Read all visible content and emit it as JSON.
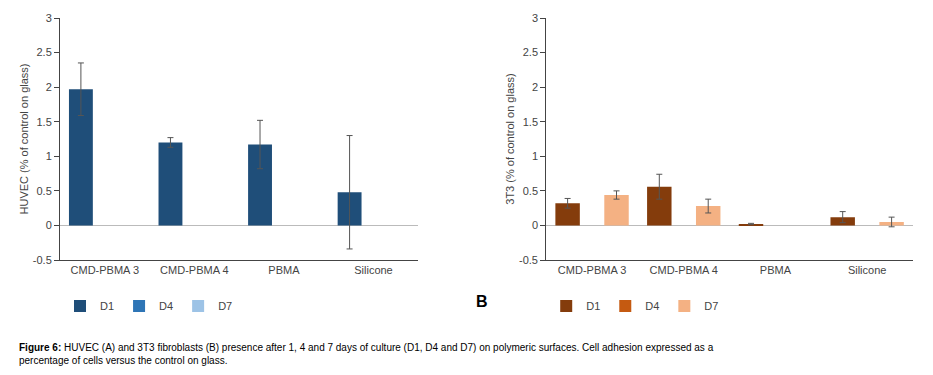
{
  "chart_data": [
    {
      "type": "bar",
      "ylabel": "HUVEC (% of control on glass)",
      "categories": [
        "CMD-PBMA 3",
        "CMD-PBMA 4",
        "PBMA",
        "Silicone"
      ],
      "series": [
        {
          "name": "D1",
          "color": "#1f4e79",
          "values": [
            1.97,
            1.2,
            1.17,
            0.48
          ],
          "errors": [
            0.38,
            0.07,
            0.35,
            0.82
          ]
        },
        {
          "name": "D4",
          "color": "#2e75b6",
          "values": [
            null,
            null,
            null,
            null
          ],
          "errors": [
            null,
            null,
            null,
            null
          ]
        },
        {
          "name": "D7",
          "color": "#9dc3e6",
          "values": [
            null,
            null,
            null,
            null
          ],
          "errors": [
            null,
            null,
            null,
            null
          ]
        }
      ],
      "ylim": [
        -0.5,
        3
      ],
      "yticks": [
        -0.5,
        0,
        0.5,
        1,
        1.5,
        2,
        2.5,
        3
      ],
      "grid": false,
      "caption_label": "Figure 6:",
      "caption": "HUVEC (A) and 3T3 fibroblasts (B) presence after 1, 4 and 7 days of culture (D1, D4 and D7) on polymeric surfaces. Cell adhesion expressed as a\npercentage of cells versus the control on glass."
    },
    {
      "type": "bar",
      "ylabel": "3T3 (% of control on glass)",
      "categories": [
        "CMD-PBMA 3",
        "CMD-PBMA 4",
        "PBMA",
        "Silicone"
      ],
      "series": [
        {
          "name": "D1",
          "color": "#843c0c",
          "values": [
            0.32,
            0.56,
            0.02,
            0.12
          ],
          "errors": [
            0.07,
            0.18,
            0.01,
            0.08
          ]
        },
        {
          "name": "D4",
          "color": "#c55a11",
          "values": [
            null,
            null,
            null,
            null
          ],
          "errors": [
            null,
            null,
            null,
            null
          ]
        },
        {
          "name": "D7",
          "color": "#f4b183",
          "values": [
            0.44,
            0.28,
            null,
            0.05
          ],
          "errors": [
            0.06,
            0.1,
            null,
            0.07
          ]
        }
      ],
      "ylim": [
        -0.5,
        3
      ],
      "yticks": [
        -0.5,
        0,
        0.5,
        1,
        1.5,
        2,
        2.5,
        3
      ],
      "grid": false,
      "annotations": [
        "B"
      ]
    }
  ]
}
